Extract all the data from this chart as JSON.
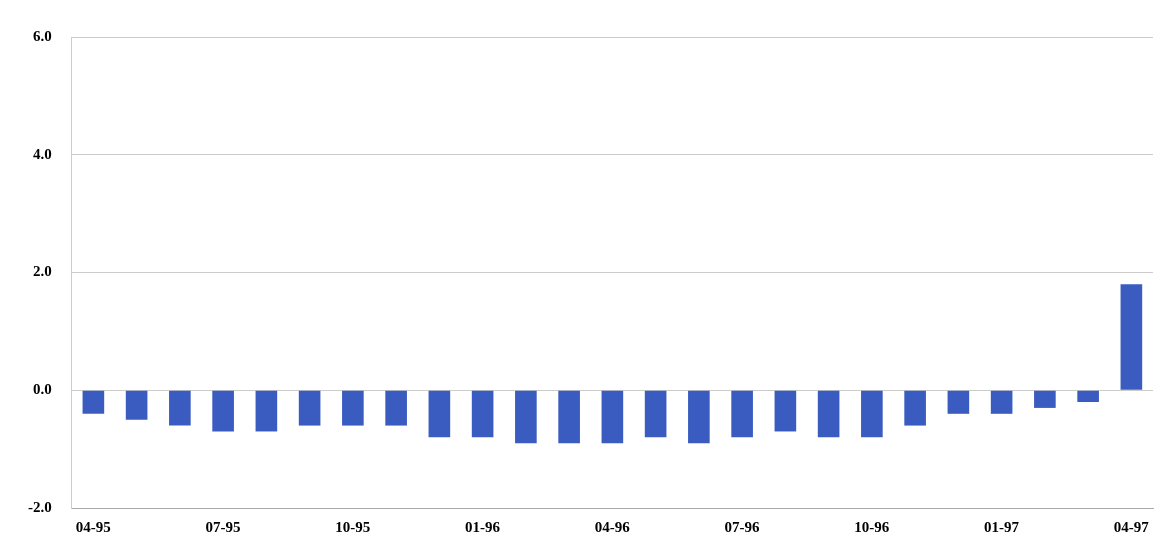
{
  "chart_data": {
    "type": "bar",
    "categories": [
      "04-95",
      null,
      null,
      "07-95",
      null,
      null,
      "10-95",
      null,
      null,
      "01-96",
      null,
      null,
      "04-96",
      null,
      null,
      "07-96",
      null,
      null,
      "10-96",
      null,
      null,
      "01-97",
      null,
      null,
      "04-97"
    ],
    "values": [
      -0.4,
      -0.5,
      -0.6,
      -0.7,
      -0.7,
      -0.6,
      -0.6,
      -0.6,
      -0.8,
      -0.8,
      -0.9,
      -0.9,
      -0.9,
      -0.8,
      -0.9,
      -0.8,
      -0.7,
      -0.8,
      -0.8,
      -0.6,
      -0.4,
      -0.4,
      -0.3,
      -0.2,
      1.8
    ],
    "color": "#3a5cc0",
    "ylim": [
      -2,
      6
    ],
    "yticks": [
      {
        "value": -2,
        "label": "-2.0"
      },
      {
        "value": 0,
        "label": "0.0"
      },
      {
        "value": 2,
        "label": "2.0"
      },
      {
        "value": 4,
        "label": "4.0"
      },
      {
        "value": 6,
        "label": "6.0"
      }
    ],
    "grid": "y",
    "legend": false
  }
}
